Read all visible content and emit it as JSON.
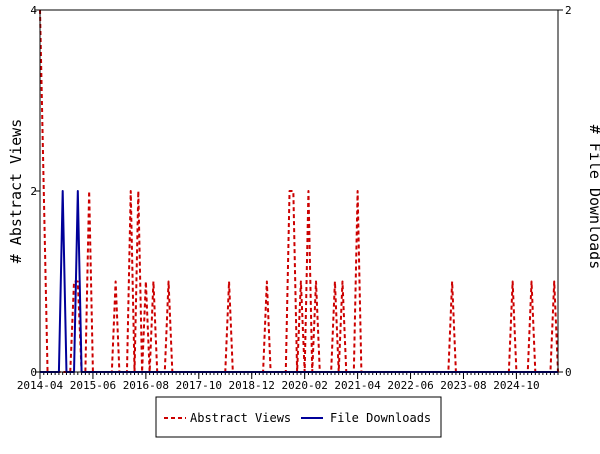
{
  "chart_data": {
    "type": "line",
    "x_ticks": [
      "2014-04",
      "2015-06",
      "2016-08",
      "2017-10",
      "2018-12",
      "2020-02",
      "2021-04",
      "2022-06",
      "2023-08",
      "2024-10"
    ],
    "y_left": {
      "label": "# Abstract Views",
      "ticks": [
        "0",
        "2",
        "4"
      ],
      "range": [
        0,
        4
      ]
    },
    "y_right": {
      "label": "# File Downloads",
      "ticks": [
        "0",
        "2"
      ],
      "range": [
        0,
        2
      ]
    },
    "x_range": [
      "2014-04",
      "2025-09"
    ],
    "grid": false,
    "legend_position": "bottom-center",
    "series": [
      {
        "name": "Abstract Views",
        "axis": "left",
        "color": "#cc0000",
        "style": "dashed",
        "points": [
          [
            "2014-04",
            4
          ],
          [
            "2014-05",
            2
          ],
          [
            "2014-06",
            0
          ],
          [
            "2014-12",
            0
          ],
          [
            "2015-01",
            1
          ],
          [
            "2015-02",
            1
          ],
          [
            "2015-03",
            0
          ],
          [
            "2015-04",
            0
          ],
          [
            "2015-05",
            2
          ],
          [
            "2015-06",
            0
          ],
          [
            "2015-11",
            0
          ],
          [
            "2015-12",
            1
          ],
          [
            "2016-01",
            0
          ],
          [
            "2016-03",
            0
          ],
          [
            "2016-04",
            2
          ],
          [
            "2016-05",
            0
          ],
          [
            "2016-06",
            2
          ],
          [
            "2016-07",
            0
          ],
          [
            "2016-08",
            1
          ],
          [
            "2016-09",
            0
          ],
          [
            "2016-10",
            1
          ],
          [
            "2016-11",
            0
          ],
          [
            "2017-01",
            0
          ],
          [
            "2017-02",
            1
          ],
          [
            "2017-03",
            0
          ],
          [
            "2018-05",
            0
          ],
          [
            "2018-06",
            1
          ],
          [
            "2018-07",
            0
          ],
          [
            "2019-03",
            0
          ],
          [
            "2019-04",
            1
          ],
          [
            "2019-05",
            0
          ],
          [
            "2019-09",
            0
          ],
          [
            "2019-10",
            2
          ],
          [
            "2019-11",
            2
          ],
          [
            "2019-12",
            0
          ],
          [
            "2020-01",
            1
          ],
          [
            "2020-02",
            0
          ],
          [
            "2020-03",
            2
          ],
          [
            "2020-04",
            0
          ],
          [
            "2020-05",
            1
          ],
          [
            "2020-06",
            0
          ],
          [
            "2020-09",
            0
          ],
          [
            "2020-10",
            1
          ],
          [
            "2020-11",
            0
          ],
          [
            "2020-12",
            1
          ],
          [
            "2021-01",
            0
          ],
          [
            "2021-03",
            0
          ],
          [
            "2021-04",
            2
          ],
          [
            "2021-05",
            0
          ],
          [
            "2023-04",
            0
          ],
          [
            "2023-05",
            1
          ],
          [
            "2023-06",
            0
          ],
          [
            "2024-08",
            0
          ],
          [
            "2024-09",
            1
          ],
          [
            "2024-10",
            0
          ],
          [
            "2025-01",
            0
          ],
          [
            "2025-02",
            1
          ],
          [
            "2025-03",
            0
          ],
          [
            "2025-07",
            0
          ],
          [
            "2025-08",
            1
          ],
          [
            "2025-09",
            0
          ]
        ]
      },
      {
        "name": "File Downloads",
        "axis": "right",
        "color": "#000099",
        "style": "solid",
        "points": [
          [
            "2014-04",
            0
          ],
          [
            "2014-09",
            0
          ],
          [
            "2014-10",
            1
          ],
          [
            "2014-11",
            0
          ],
          [
            "2015-01",
            0
          ],
          [
            "2015-02",
            1
          ],
          [
            "2015-03",
            0
          ],
          [
            "2025-09",
            0
          ]
        ]
      }
    ]
  }
}
